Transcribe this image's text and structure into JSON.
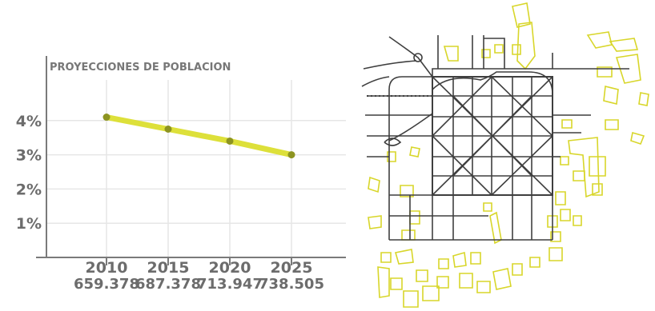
{
  "colors": {
    "accent": "#dde03a",
    "point": "#8d9421",
    "axis": "#7a7a7a",
    "grid": "#e6e6e6",
    "text": "#6c6c6c",
    "map_lines": "#3f3f3f",
    "map_blocks": "#d8d62a"
  },
  "chart_data": {
    "type": "line",
    "title": "PROYECCIONES DE POBLACION",
    "categories": [
      "2010",
      "2015",
      "2020",
      "2025"
    ],
    "sublabels": [
      "659.378",
      "687.378",
      "713.947",
      "738.505"
    ],
    "values": [
      4.1,
      3.75,
      3.4,
      3.0
    ],
    "yticks": [
      1,
      2,
      3,
      4
    ],
    "ytick_labels": [
      "1%",
      "2%",
      "3%",
      "4%"
    ],
    "ylim": [
      0,
      5.4
    ],
    "xlabel": "",
    "ylabel": "",
    "grid": true
  },
  "map": {
    "icon": "city-street-grid-map"
  }
}
